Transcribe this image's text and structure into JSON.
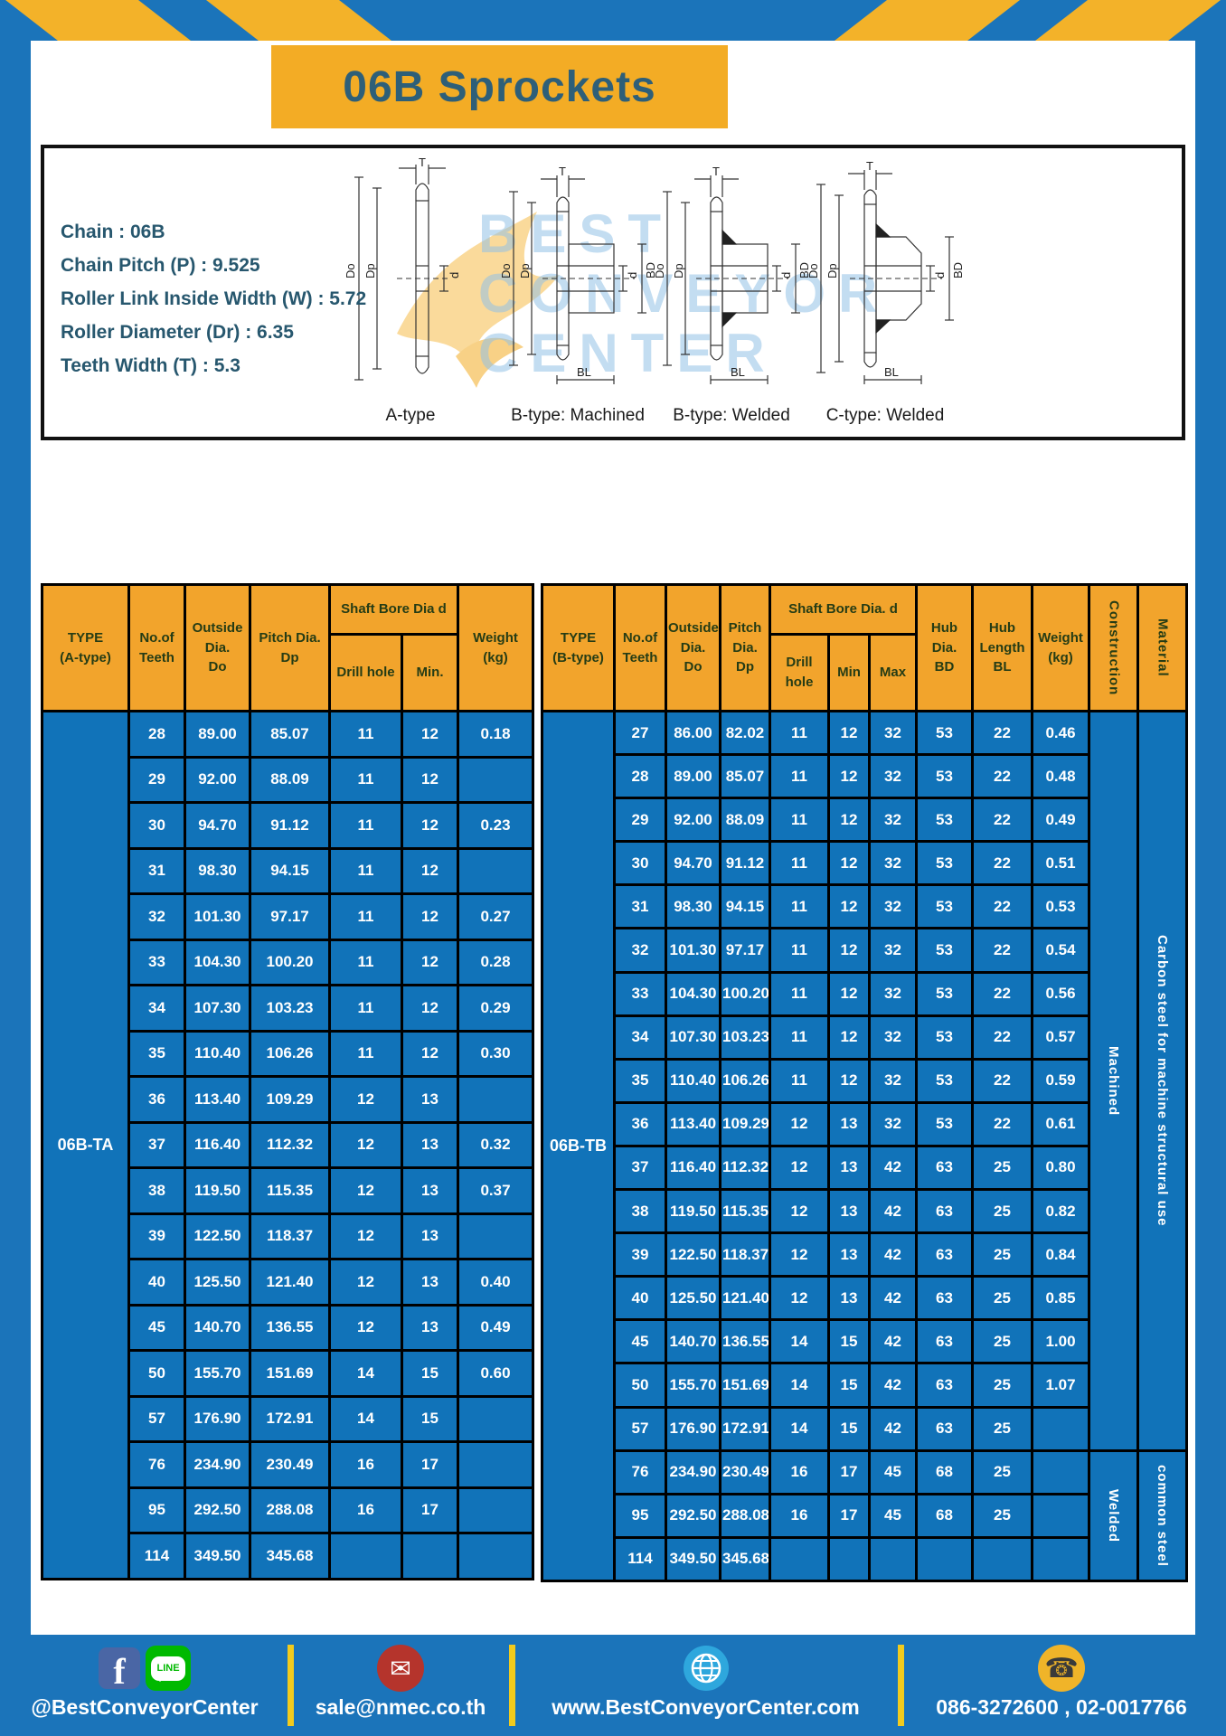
{
  "page": {
    "title": "06B Sprockets"
  },
  "colors": {
    "frame_blue": "#1b74ba",
    "stripe_yellow": "#f3b229",
    "title_bg": "#f3ac25",
    "title_text": "#2e5f78",
    "header_bg": "#f2a42c",
    "header_text": "#253c15",
    "cell_bg": "#1173b9",
    "cell_text": "#ffffff",
    "divider_yellow": "#f2cb1d"
  },
  "specs": {
    "lines": [
      "Chain : 06B",
      "Chain Pitch (P) : 9.525",
      "Roller Link Inside Width (W) : 5.72",
      "Roller Diameter (Dr) : 6.35",
      "Teeth Width (T) : 5.3"
    ]
  },
  "diagrams": {
    "captions": [
      "A-type",
      "B-type: Machined",
      "B-type: Welded",
      "C-type: Welded"
    ],
    "dim_labels": {
      "t": "T",
      "outside": "Do",
      "pitch": "Dp",
      "bore": "d",
      "hub_dia": "BD",
      "hub_len": "BL"
    },
    "watermark": [
      "BEST",
      "CONVEYOR",
      "CENTER"
    ]
  },
  "left_table": {
    "type_label": "06B-TA",
    "headers": {
      "type": "TYPE\n(A-type)",
      "teeth": "No.of\nTeeth",
      "outside": "Outside\nDia.\nDo",
      "pitch": "Pitch Dia.\nDp",
      "shaft_bore": "Shaft Bore Dia d",
      "drill": "Drill hole",
      "min": "Min.",
      "weight": "Weight\n(kg)"
    },
    "rows": [
      [
        "28",
        "89.00",
        "85.07",
        "11",
        "12",
        "0.18"
      ],
      [
        "29",
        "92.00",
        "88.09",
        "11",
        "12",
        ""
      ],
      [
        "30",
        "94.70",
        "91.12",
        "11",
        "12",
        "0.23"
      ],
      [
        "31",
        "98.30",
        "94.15",
        "11",
        "12",
        ""
      ],
      [
        "32",
        "101.30",
        "97.17",
        "11",
        "12",
        "0.27"
      ],
      [
        "33",
        "104.30",
        "100.20",
        "11",
        "12",
        "0.28"
      ],
      [
        "34",
        "107.30",
        "103.23",
        "11",
        "12",
        "0.29"
      ],
      [
        "35",
        "110.40",
        "106.26",
        "11",
        "12",
        "0.30"
      ],
      [
        "36",
        "113.40",
        "109.29",
        "12",
        "13",
        ""
      ],
      [
        "37",
        "116.40",
        "112.32",
        "12",
        "13",
        "0.32"
      ],
      [
        "38",
        "119.50",
        "115.35",
        "12",
        "13",
        "0.37"
      ],
      [
        "39",
        "122.50",
        "118.37",
        "12",
        "13",
        ""
      ],
      [
        "40",
        "125.50",
        "121.40",
        "12",
        "13",
        "0.40"
      ],
      [
        "45",
        "140.70",
        "136.55",
        "12",
        "13",
        "0.49"
      ],
      [
        "50",
        "155.70",
        "151.69",
        "14",
        "15",
        "0.60"
      ],
      [
        "57",
        "176.90",
        "172.91",
        "14",
        "15",
        ""
      ],
      [
        "76",
        "234.90",
        "230.49",
        "16",
        "17",
        ""
      ],
      [
        "95",
        "292.50",
        "288.08",
        "16",
        "17",
        ""
      ],
      [
        "114",
        "349.50",
        "345.68",
        "",
        "",
        ""
      ]
    ]
  },
  "right_table": {
    "type_label": "06B-TB",
    "headers": {
      "type": "TYPE\n(B-type)",
      "teeth": "No.of\nTeeth",
      "outside": "Outside\nDia.\nDo",
      "pitch": "Pitch\nDia.\nDp",
      "shaft_bore": "Shaft Bore Dia. d",
      "drill": "Drill hole",
      "min": "Min",
      "max": "Max",
      "hub_dia": "Hub\nDia.\nBD",
      "hub_len": "Hub\nLength\nBL",
      "weight": "Weight\n(kg)",
      "construction": "Construction",
      "material": "Material"
    },
    "construction": [
      {
        "label": "Machined",
        "span": 17
      },
      {
        "label": "Welded",
        "span": 3
      }
    ],
    "material": [
      {
        "label": "Carbon steel for machine structural use",
        "span": 17
      },
      {
        "label": "common steel",
        "span": 3
      }
    ],
    "rows": [
      [
        "27",
        "86.00",
        "82.02",
        "11",
        "12",
        "32",
        "53",
        "22",
        "0.46"
      ],
      [
        "28",
        "89.00",
        "85.07",
        "11",
        "12",
        "32",
        "53",
        "22",
        "0.48"
      ],
      [
        "29",
        "92.00",
        "88.09",
        "11",
        "12",
        "32",
        "53",
        "22",
        "0.49"
      ],
      [
        "30",
        "94.70",
        "91.12",
        "11",
        "12",
        "32",
        "53",
        "22",
        "0.51"
      ],
      [
        "31",
        "98.30",
        "94.15",
        "11",
        "12",
        "32",
        "53",
        "22",
        "0.53"
      ],
      [
        "32",
        "101.30",
        "97.17",
        "11",
        "12",
        "32",
        "53",
        "22",
        "0.54"
      ],
      [
        "33",
        "104.30",
        "100.20",
        "11",
        "12",
        "32",
        "53",
        "22",
        "0.56"
      ],
      [
        "34",
        "107.30",
        "103.23",
        "11",
        "12",
        "32",
        "53",
        "22",
        "0.57"
      ],
      [
        "35",
        "110.40",
        "106.26",
        "11",
        "12",
        "32",
        "53",
        "22",
        "0.59"
      ],
      [
        "36",
        "113.40",
        "109.29",
        "12",
        "13",
        "32",
        "53",
        "22",
        "0.61"
      ],
      [
        "37",
        "116.40",
        "112.32",
        "12",
        "13",
        "42",
        "63",
        "25",
        "0.80"
      ],
      [
        "38",
        "119.50",
        "115.35",
        "12",
        "13",
        "42",
        "63",
        "25",
        "0.82"
      ],
      [
        "39",
        "122.50",
        "118.37",
        "12",
        "13",
        "42",
        "63",
        "25",
        "0.84"
      ],
      [
        "40",
        "125.50",
        "121.40",
        "12",
        "13",
        "42",
        "63",
        "25",
        "0.85"
      ],
      [
        "45",
        "140.70",
        "136.55",
        "14",
        "15",
        "42",
        "63",
        "25",
        "1.00"
      ],
      [
        "50",
        "155.70",
        "151.69",
        "14",
        "15",
        "42",
        "63",
        "25",
        "1.07"
      ],
      [
        "57",
        "176.90",
        "172.91",
        "14",
        "15",
        "42",
        "63",
        "25",
        ""
      ],
      [
        "76",
        "234.90",
        "230.49",
        "16",
        "17",
        "45",
        "68",
        "25",
        ""
      ],
      [
        "95",
        "292.50",
        "288.08",
        "16",
        "17",
        "45",
        "68",
        "25",
        ""
      ],
      [
        "114",
        "349.50",
        "345.68",
        "",
        "",
        "",
        "",
        "",
        ""
      ]
    ]
  },
  "footer": {
    "social_handle": "@BestConveyorCenter",
    "line_label": "LINE",
    "email": "sale@nmec.co.th",
    "website": "www.BestConveyorCenter.com",
    "phones": "086-3272600 , 02-0017766"
  }
}
